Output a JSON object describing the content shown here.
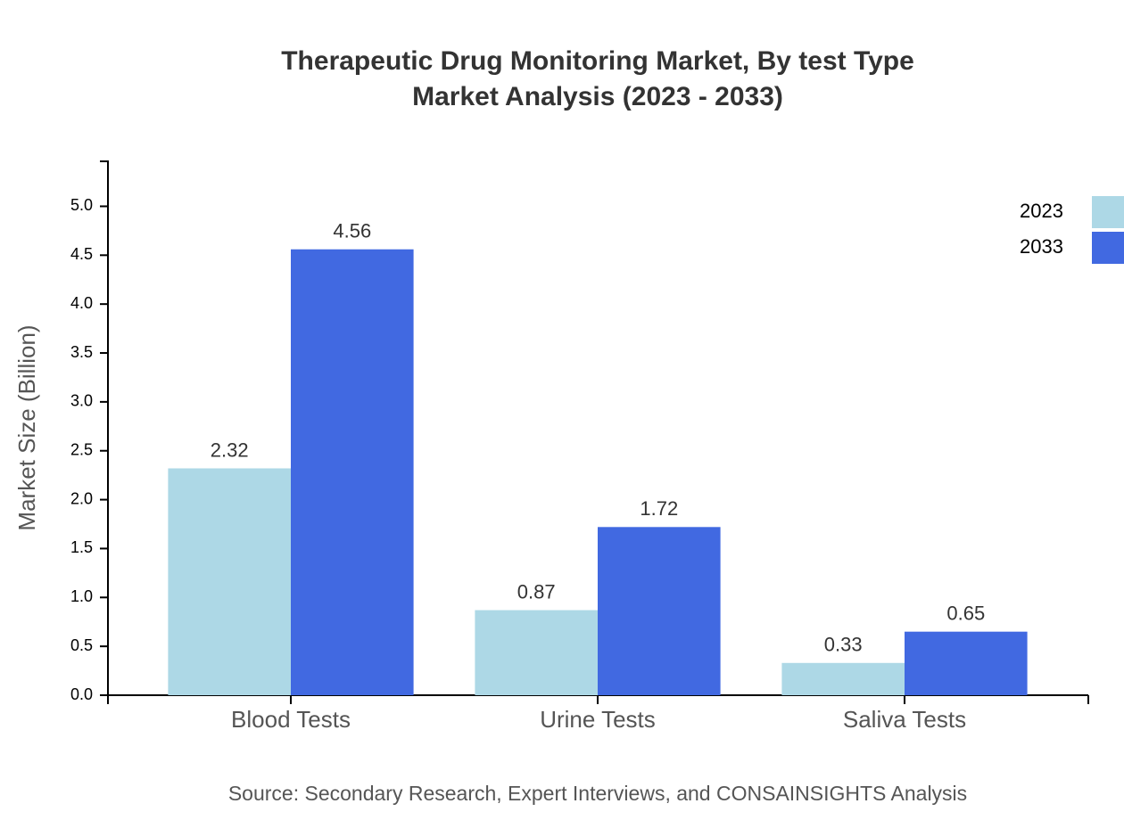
{
  "chart_data": {
    "type": "bar",
    "title": "Therapeutic Drug Monitoring Market, By test Type",
    "subtitle": "Market Analysis (2023 - 2033)",
    "y_label": "Market Size (Billion)",
    "categories": [
      "Blood Tests",
      "Urine Tests",
      "Saliva Tests"
    ],
    "series": [
      {
        "name": "2023",
        "color": "#add8e6",
        "values": [
          2.32,
          0.87,
          0.33
        ]
      },
      {
        "name": "2033",
        "color": "#4169e1",
        "values": [
          4.56,
          1.72,
          0.65
        ]
      }
    ],
    "ylim": [
      0,
      5.46
    ],
    "yticks": [
      {
        "value": 0,
        "label": "0.0"
      },
      0.5,
      {
        "value": 1,
        "label": "1.0"
      },
      1.5,
      {
        "value": 2,
        "label": "2.0"
      },
      2.5,
      {
        "value": 3,
        "label": "3.0"
      },
      3.5,
      {
        "value": 4,
        "label": "4.0"
      },
      4.5,
      {
        "value": 5,
        "label": "5.0"
      }
    ],
    "grid": false,
    "legend": "top-right",
    "source": "Source: Secondary Research, Expert Interviews, and CONSAINSIGHTS Analysis"
  }
}
